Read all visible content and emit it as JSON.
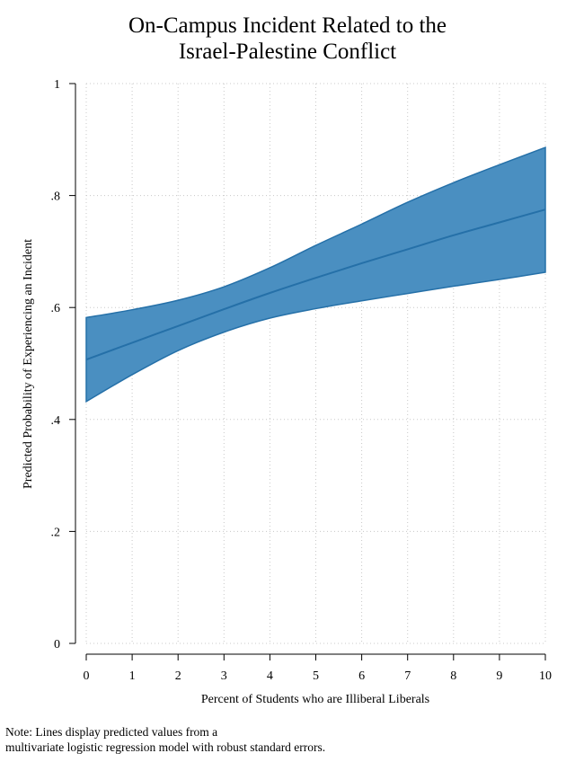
{
  "chart_data": {
    "type": "area",
    "title": [
      "On-Campus Incident Related to the",
      "Israel-Palestine Conflict"
    ],
    "xlabel": "Percent of Students who are Illiberal Liberals",
    "ylabel": "Predicted Probability of Experiencing an Incident",
    "xlim": [
      0,
      10
    ],
    "ylim": [
      0,
      1
    ],
    "x_ticks": [
      0,
      1,
      2,
      3,
      4,
      5,
      6,
      7,
      8,
      9,
      10
    ],
    "y_ticks": [
      0,
      0.2,
      0.4,
      0.6,
      0.8,
      1
    ],
    "y_tick_labels": [
      "0",
      ".2",
      ".4",
      ".6",
      ".8",
      "1"
    ],
    "grid": true,
    "x": [
      0,
      1,
      2,
      3,
      4,
      5,
      6,
      7,
      8,
      9,
      10
    ],
    "series": [
      {
        "values": [
          0.507,
          0.537,
          0.567,
          0.597,
          0.626,
          0.653,
          0.679,
          0.704,
          0.729,
          0.752,
          0.775
        ]
      }
    ],
    "ci_lower": [
      0.432,
      0.48,
      0.523,
      0.556,
      0.581,
      0.598,
      0.612,
      0.625,
      0.638,
      0.65,
      0.663
    ],
    "ci_upper": [
      0.582,
      0.596,
      0.613,
      0.637,
      0.671,
      0.711,
      0.749,
      0.788,
      0.823,
      0.855,
      0.886
    ],
    "colors": {
      "band": "#4a8fc1",
      "line": "#2570a8",
      "grid": "#c8c8c8"
    }
  },
  "note": {
    "line1": "Note: Lines display predicted values from a",
    "line2": "multivariate logistic regression model with robust standard errors."
  }
}
